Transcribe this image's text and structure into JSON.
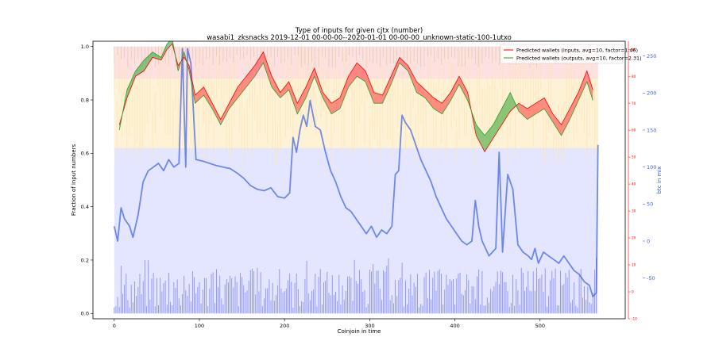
{
  "chart_data": {
    "type": "line",
    "title": "Type of inputs for given cjtx (number)",
    "subtitle": "wasabi1_zksnacks 2019-12-01 00-00-00--2020-01-01 00-00-00_unknown-static-100-1utxo",
    "xlabel": "Coinjoin in time",
    "ylabel": "Fraction of input numbers",
    "y2label": "btc in mix",
    "xlim": [
      -25,
      600
    ],
    "ylim": [
      -0.02,
      1.02
    ],
    "y_mid_lim": [
      -10,
      93
    ],
    "y2_lim": [
      -105,
      270
    ],
    "x_ticks": [
      0,
      100,
      200,
      300,
      400,
      500
    ],
    "y_ticks": [
      "0.0",
      "0.2",
      "0.4",
      "0.6",
      "0.8",
      "1.0"
    ],
    "y_mid_ticks": [
      "-10",
      "0",
      "10",
      "20",
      "30",
      "40",
      "50",
      "60",
      "70",
      "80",
      "90"
    ],
    "y2_ticks": [
      "-50",
      "0",
      "50",
      "100",
      "150",
      "200",
      "250"
    ],
    "legend_position": "top-right",
    "series": [
      {
        "name": "Predicted wallets (inputs, avg=10, factor=1.46)",
        "color": "#ff0000",
        "axis": "middle",
        "x": [
          6,
          15,
          25,
          35,
          45,
          55,
          62,
          68,
          75,
          82,
          88,
          95,
          105,
          115,
          125,
          135,
          145,
          155,
          165,
          175,
          185,
          195,
          205,
          215,
          225,
          235,
          245,
          255,
          265,
          275,
          285,
          295,
          305,
          315,
          325,
          335,
          345,
          355,
          365,
          375,
          385,
          395,
          405,
          415,
          425,
          435,
          445,
          455,
          465,
          475,
          485,
          495,
          505,
          515,
          525,
          535,
          545,
          555,
          562
        ],
        "values": [
          62,
          72,
          80,
          82,
          87,
          86,
          90,
          92,
          84,
          87,
          84,
          73,
          76,
          70,
          64,
          70,
          76,
          80,
          84,
          89,
          80,
          74,
          78,
          70,
          76,
          83,
          74,
          70,
          72,
          80,
          85,
          82,
          74,
          73,
          80,
          87,
          84,
          78,
          75,
          72,
          70,
          74,
          80,
          74,
          58,
          52,
          57,
          62,
          67,
          70,
          68,
          70,
          72,
          66,
          62,
          68,
          74,
          82,
          75
        ]
      },
      {
        "name": "Predicted wallets (outputs, avg=10, factor=2.31)",
        "color": "#2ca02c",
        "axis": "middle",
        "x": [
          6,
          15,
          25,
          35,
          45,
          55,
          62,
          68,
          75,
          82,
          88,
          95,
          105,
          115,
          125,
          135,
          145,
          155,
          165,
          175,
          185,
          195,
          205,
          215,
          225,
          235,
          245,
          255,
          265,
          275,
          285,
          295,
          305,
          315,
          325,
          335,
          345,
          355,
          365,
          375,
          385,
          395,
          405,
          415,
          425,
          435,
          445,
          455,
          465,
          475,
          485,
          495,
          505,
          515,
          525,
          535,
          545,
          555,
          562
        ],
        "values": [
          60,
          75,
          82,
          86,
          89,
          87,
          92,
          94,
          82,
          89,
          82,
          70,
          73,
          68,
          62,
          68,
          72,
          76,
          80,
          85,
          76,
          72,
          75,
          66,
          72,
          80,
          72,
          66,
          68,
          76,
          80,
          78,
          70,
          70,
          77,
          85,
          82,
          74,
          72,
          68,
          66,
          71,
          77,
          71,
          62,
          58,
          62,
          68,
          74,
          67,
          64,
          66,
          68,
          63,
          58,
          64,
          71,
          78,
          71
        ]
      },
      {
        "name": "btc in mix",
        "color": "#3b5fe0",
        "axis": "right",
        "x": [
          0,
          4,
          8,
          12,
          18,
          22,
          28,
          34,
          40,
          46,
          52,
          58,
          64,
          70,
          76,
          80,
          84,
          86,
          90,
          96,
          104,
          112,
          120,
          128,
          136,
          144,
          152,
          160,
          168,
          176,
          184,
          192,
          200,
          206,
          210,
          214,
          218,
          222,
          226,
          230,
          236,
          242,
          248,
          254,
          260,
          266,
          272,
          278,
          284,
          290,
          296,
          302,
          308,
          314,
          320,
          326,
          330,
          334,
          338,
          342,
          348,
          354,
          360,
          366,
          372,
          378,
          384,
          390,
          396,
          402,
          408,
          414,
          420,
          424,
          428,
          432,
          436,
          440,
          444,
          448,
          452,
          456,
          462,
          468,
          474,
          480,
          486,
          490,
          494,
          498,
          504,
          510,
          516,
          522,
          528,
          534,
          540,
          546,
          552,
          558,
          562,
          566,
          568
        ],
        "values": [
          20,
          0,
          45,
          30,
          20,
          5,
          35,
          80,
          95,
          100,
          105,
          95,
          110,
          100,
          105,
          260,
          100,
          260,
          240,
          110,
          108,
          105,
          102,
          100,
          98,
          92,
          85,
          75,
          70,
          68,
          72,
          60,
          58,
          65,
          140,
          120,
          150,
          170,
          155,
          190,
          155,
          150,
          120,
          95,
          80,
          60,
          45,
          40,
          30,
          20,
          10,
          20,
          5,
          15,
          10,
          20,
          90,
          95,
          170,
          160,
          150,
          130,
          110,
          95,
          80,
          60,
          45,
          30,
          20,
          10,
          0,
          -5,
          0,
          55,
          20,
          0,
          -10,
          -20,
          -15,
          -10,
          120,
          -15,
          90,
          70,
          -5,
          -15,
          -20,
          -25,
          -10,
          -30,
          -15,
          -20,
          -25,
          -30,
          -20,
          -30,
          -40,
          -45,
          -55,
          -60,
          -75,
          -70,
          130
        ]
      }
    ]
  }
}
